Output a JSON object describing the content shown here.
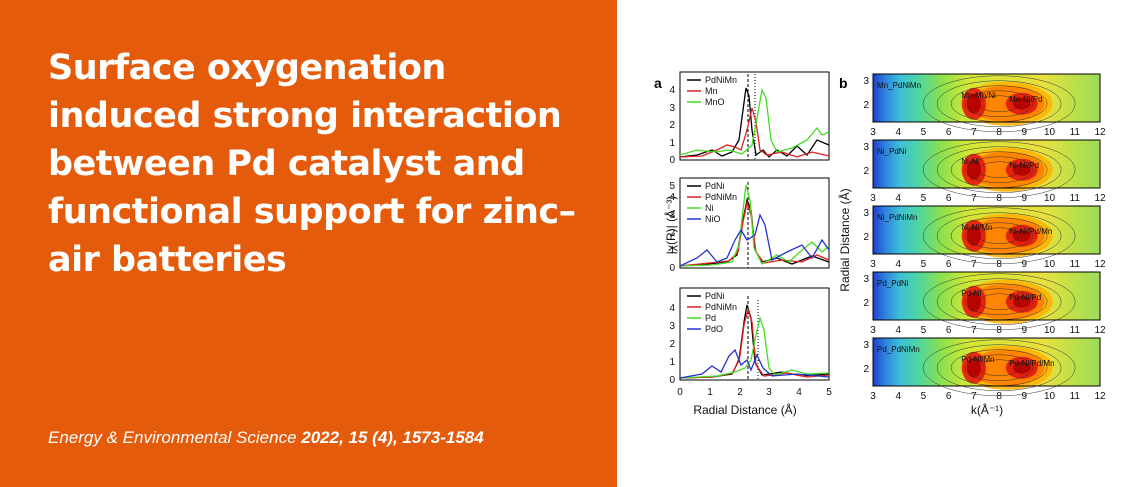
{
  "title": "Surface oxygenation induced strong interaction between Pd catalyst and functional support for zinc–air batteries",
  "citation": {
    "journal": "Energy & Environmental Science",
    "details": "2022, 15 (4), 1573-1584"
  },
  "colors": {
    "orange": "#E35B0B",
    "text": "#FFFFFF"
  },
  "figure": {
    "panel_a": {
      "label": "a",
      "ylabel": "|χ(R)| (Å⁻³)",
      "xlabel": "Radial Distance (Å)",
      "yticks": [
        "0",
        "1",
        "2",
        "3",
        "4",
        "5"
      ],
      "xticks": [
        "0",
        "1",
        "2",
        "3",
        "4",
        "5"
      ],
      "subplots": [
        {
          "legend": [
            {
              "name": "PdNiMn",
              "color": "#000000"
            },
            {
              "name": "Mn",
              "color": "#E02020"
            },
            {
              "name": "MnO",
              "color": "#44DD22"
            }
          ]
        },
        {
          "legend": [
            {
              "name": "PdNi",
              "color": "#000000"
            },
            {
              "name": "PdNiMn",
              "color": "#E02020"
            },
            {
              "name": "Ni",
              "color": "#44DD22"
            },
            {
              "name": "NiO",
              "color": "#2233CC"
            }
          ]
        },
        {
          "legend": [
            {
              "name": "PdNi",
              "color": "#000000"
            },
            {
              "name": "PdNiMn",
              "color": "#E02020"
            },
            {
              "name": "Pd",
              "color": "#44DD22"
            },
            {
              "name": "PdO",
              "color": "#2233CC"
            }
          ]
        }
      ]
    },
    "panel_b": {
      "label": "b",
      "ylabel": "Radial Distance (Å)",
      "xlabel": "k(Å⁻¹)",
      "yticks": [
        "2",
        "3"
      ],
      "xticks": [
        "3",
        "4",
        "5",
        "6",
        "7",
        "8",
        "9",
        "10",
        "11",
        "12"
      ],
      "maps": [
        {
          "sample": "Mn_PdNiMn",
          "labels": [
            "Mn-Mn/Ni",
            "Mn-Ni/Pd"
          ]
        },
        {
          "sample": "Ni_PdNi",
          "labels": [
            "Ni-Ni",
            "Ni-Ni/Pd"
          ]
        },
        {
          "sample": "Ni_PdNiMn",
          "labels": [
            "Ni-Ni/Mn",
            "Ni-Ni/Pd/Mn"
          ]
        },
        {
          "sample": "Pd_PdNi",
          "labels": [
            "Pd-Ni",
            "Pd-Ni/Pd"
          ]
        },
        {
          "sample": "Pd_PdNiMn",
          "labels": [
            "Pd-Ni/Mn",
            "Pd-Ni/Pd/Mn"
          ]
        }
      ]
    }
  }
}
